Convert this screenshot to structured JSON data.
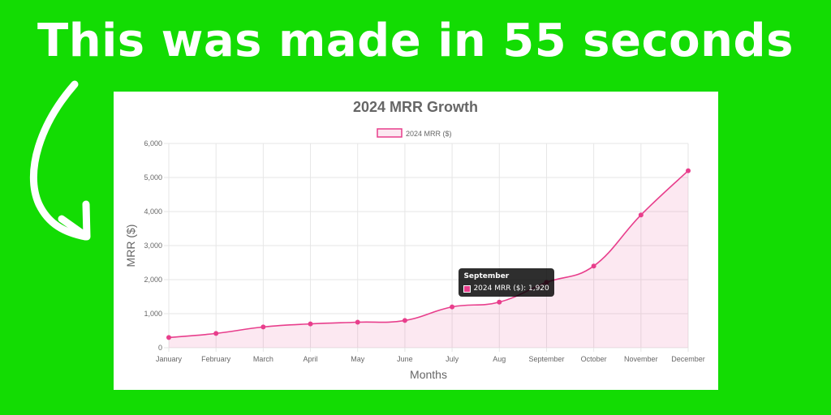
{
  "headline": "This was made in 55 seconds",
  "colors": {
    "background": "#13dc03",
    "series": "#e83e8c",
    "series_fill": "rgba(232,62,140,0.12)"
  },
  "chart_data": {
    "type": "line",
    "title": "2024 MRR Growth",
    "xlabel": "Months",
    "ylabel": "MRR ($)",
    "categories": [
      "January",
      "February",
      "March",
      "April",
      "May",
      "June",
      "July",
      "Aug",
      "September",
      "October",
      "November",
      "December"
    ],
    "series": [
      {
        "name": "2024 MRR ($)",
        "values": [
          300,
          420,
          610,
          700,
          750,
          800,
          1200,
          1340,
          1920,
          2400,
          3900,
          5200
        ]
      }
    ],
    "ylim": [
      0,
      6000
    ],
    "yticks": [
      "0",
      "1,000",
      "2,000",
      "3,000",
      "4,000",
      "5,000",
      "6,000"
    ],
    "grid": true,
    "fill": true,
    "legend_position": "top",
    "tooltip": {
      "title": "September",
      "label": "2024 MRR ($): 1,920"
    }
  }
}
